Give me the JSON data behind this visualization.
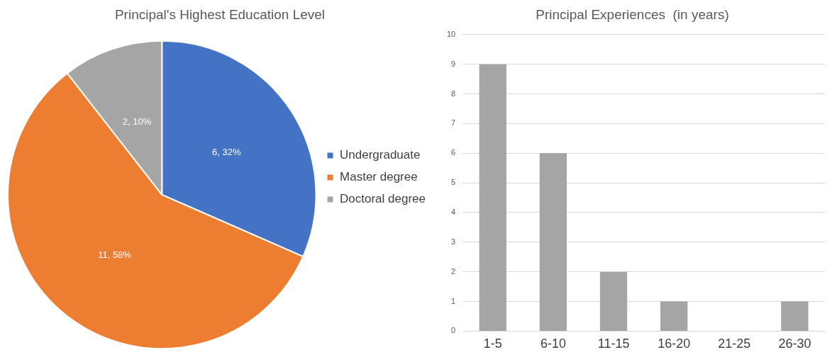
{
  "chart_data": [
    {
      "type": "pie",
      "title": "Principal's Highest Education Level",
      "categories": [
        "Undergraduate",
        "Master degree",
        "Doctoral degree"
      ],
      "values": [
        6,
        11,
        2
      ],
      "colors": [
        "#4472c4",
        "#ed7d31",
        "#a5a5a5"
      ],
      "value_labels": [
        "6, 32%",
        "11, 58%",
        "2, 10%"
      ],
      "legend": "right"
    },
    {
      "type": "bar",
      "title": "Principal Experiences  (in years)",
      "categories": [
        "1-5",
        "6-10",
        "11-15",
        "16-20",
        "21-25",
        "26-30"
      ],
      "values": [
        9,
        6,
        2,
        1,
        0,
        1
      ],
      "color": "#a5a5a5",
      "ylim": [
        0,
        10
      ],
      "yticks": [
        0,
        1,
        2,
        3,
        4,
        5,
        6,
        7,
        8,
        9,
        10
      ],
      "grid": "y"
    }
  ]
}
